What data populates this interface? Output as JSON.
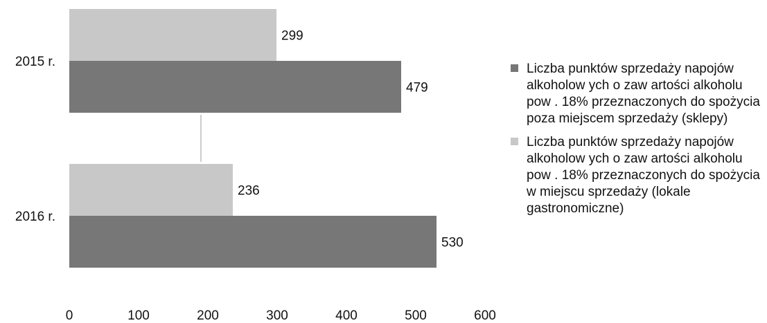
{
  "chart_data": {
    "type": "bar",
    "orientation": "horizontal",
    "categories": [
      "2015 r.",
      "2016 r."
    ],
    "series": [
      {
        "name": "Liczba punktów sprzedaży napojów alkoholow ych o zaw artości alkoholu pow . 18% przeznaczonych do spożycia w miejscu sprzedaży (lokale gastronomiczne)",
        "values": [
          299,
          236
        ],
        "color": "#c8c8c8"
      },
      {
        "name": "Liczba punktów sprzedaży napojów alkoholow ych o zaw artości alkoholu pow . 18% przeznaczonych do spożycia poza miejscem sprzedaży (sklepy)",
        "values": [
          479,
          530
        ],
        "color": "#777777"
      }
    ],
    "xlim": [
      0,
      600
    ],
    "xticks": [
      "0",
      "100",
      "200",
      "300",
      "400",
      "500",
      "600"
    ],
    "data_labels": true,
    "grid": false,
    "legend_position": "right"
  },
  "legend": {
    "items": [
      {
        "label": "Liczba punktów sprzedaży napojów alkoholow ych o zaw artości alkoholu pow . 18% przeznaczonych do spożycia poza miejscem sprzedaży (sklepy)",
        "color": "#777777"
      },
      {
        "label": "Liczba punktów sprzedaży napojów alkoholow ych o zaw artości alkoholu pow . 18% przeznaczonych do spożycia w miejscu sprzedaży (lokale gastronomiczne)",
        "color": "#c8c8c8"
      }
    ]
  }
}
